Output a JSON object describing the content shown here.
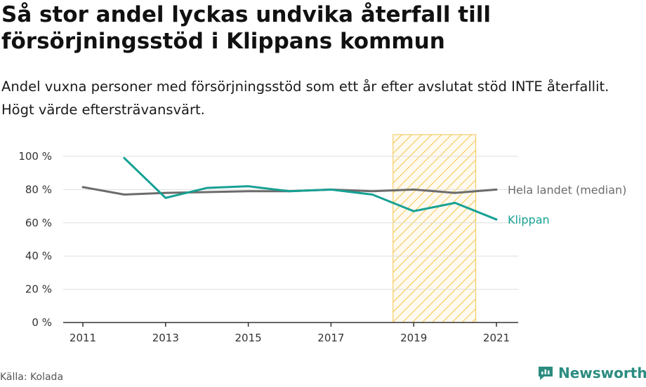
{
  "title": "Så stor andel lyckas undvika återfall till försörjningsstöd i Klippans kommun",
  "subtitle": "Andel vuxna personer med försörjningsstöd som ett år efter avslutat stöd INTE återfallit. Högt värde eftersträvansvärt.",
  "source": "Källa: Kolada",
  "brand": {
    "name": "Newsworthy",
    "icon": "newsworthy-logo-icon"
  },
  "colors": {
    "klippan": "#17a194",
    "median": "#6b6b6b",
    "highlight": "#f6c54a",
    "grid": "#dedede"
  },
  "chart_data": {
    "type": "line",
    "x": [
      2011,
      2012,
      2013,
      2014,
      2015,
      2016,
      2017,
      2018,
      2019,
      2020,
      2021
    ],
    "xticks": [
      2011,
      2013,
      2015,
      2017,
      2019,
      2021
    ],
    "xtick_labels": [
      "2011",
      "2013",
      "2015",
      "2017",
      "2019",
      "2021"
    ],
    "yticks": [
      0,
      20,
      40,
      60,
      80,
      100
    ],
    "ytick_labels": [
      "0 %",
      "20 %",
      "40 %",
      "60 %",
      "80 %",
      "100 %"
    ],
    "ylim": [
      0,
      100
    ],
    "xlim": [
      2011,
      2021
    ],
    "grid": true,
    "highlight_range": [
      2018.5,
      2020.5
    ],
    "series": [
      {
        "name": "Hela landet (median)",
        "values": [
          81.5,
          77,
          78,
          78.5,
          79,
          79,
          80,
          79,
          80,
          78,
          80
        ]
      },
      {
        "name": "Klippan",
        "values": [
          null,
          99,
          75,
          81,
          82,
          79,
          80,
          77,
          67,
          72,
          62
        ]
      }
    ]
  }
}
